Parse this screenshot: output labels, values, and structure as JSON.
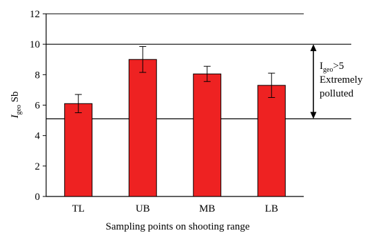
{
  "chart_data": {
    "type": "bar",
    "categories": [
      "TL",
      "UB",
      "MB",
      "LB"
    ],
    "values": [
      6.1,
      9.0,
      8.05,
      7.3
    ],
    "errors": [
      0.6,
      0.85,
      0.5,
      0.8
    ],
    "bar_color": "#ee2222",
    "ylim": [
      0,
      12
    ],
    "yticks": [
      0,
      2,
      4,
      6,
      8,
      10,
      12
    ],
    "xlabel": "Sampling points on shooting range",
    "ylabel_main": "I",
    "ylabel_sub": "geo",
    "ylabel_tail": " Sb",
    "reference_lines": [
      5.1,
      10
    ],
    "annotation": {
      "line1_main": "I",
      "line1_sub": "geo",
      "line1_tail": ">5",
      "line2": "Extremely",
      "line3": "polluted",
      "arrow_range": [
        5.1,
        10
      ]
    }
  }
}
